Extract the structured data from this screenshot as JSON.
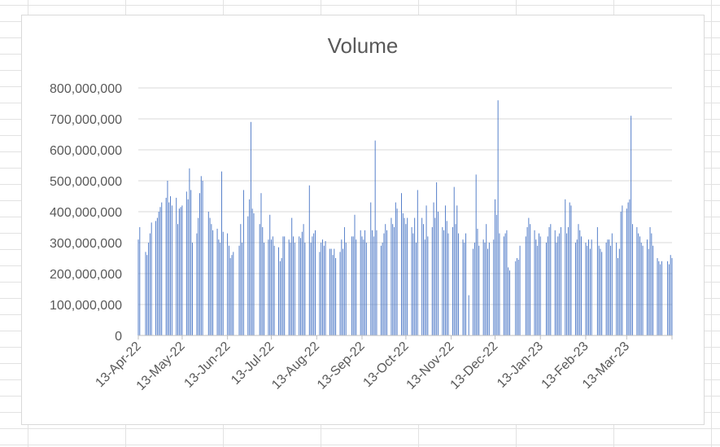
{
  "chart_data": {
    "type": "bar",
    "title": "Volume",
    "xlabel": "",
    "ylabel": "",
    "ylim": [
      0,
      800000000
    ],
    "y_ticks": [
      0,
      100000000,
      200000000,
      300000000,
      400000000,
      500000000,
      600000000,
      700000000,
      800000000
    ],
    "y_tick_labels": [
      "0",
      "100,000,000",
      "200,000,000",
      "300,000,000",
      "400,000,000",
      "500,000,000",
      "600,000,000",
      "700,000,000",
      "800,000,000"
    ],
    "x_range": [
      "2022-04-13",
      "2023-04-13"
    ],
    "x_ticks": [
      "2022-04-13",
      "2022-05-13",
      "2022-06-13",
      "2022-07-13",
      "2022-08-13",
      "2022-09-13",
      "2022-10-13",
      "2022-11-13",
      "2022-12-13",
      "2023-01-13",
      "2023-02-13",
      "2023-03-13"
    ],
    "x_tick_labels": [
      "13-Apr-22",
      "13-May-22",
      "13-Jun-22",
      "13-Jul-22",
      "13-Aug-22",
      "13-Sep-22",
      "13-Oct-22",
      "13-Nov-22",
      "13-Dec-22",
      "13-Jan-23",
      "13-Feb-23",
      "13-Mar-23"
    ],
    "grid": "horizontal",
    "legend": "none",
    "bar_color": "#4472c4",
    "series": [
      {
        "values": [
          [
            "2022-04-13",
            310000000
          ],
          [
            "2022-04-14",
            350000000
          ],
          [
            "2022-04-18",
            270000000
          ],
          [
            "2022-04-19",
            260000000
          ],
          [
            "2022-04-20",
            300000000
          ],
          [
            "2022-04-21",
            330000000
          ],
          [
            "2022-04-22",
            365000000
          ],
          [
            "2022-04-25",
            370000000
          ],
          [
            "2022-04-26",
            380000000
          ],
          [
            "2022-04-27",
            400000000
          ],
          [
            "2022-04-28",
            415000000
          ],
          [
            "2022-04-29",
            430000000
          ],
          [
            "2022-05-02",
            445000000
          ],
          [
            "2022-05-03",
            500000000
          ],
          [
            "2022-05-04",
            430000000
          ],
          [
            "2022-05-05",
            450000000
          ],
          [
            "2022-05-06",
            420000000
          ],
          [
            "2022-05-09",
            445000000
          ],
          [
            "2022-05-10",
            360000000
          ],
          [
            "2022-05-11",
            410000000
          ],
          [
            "2022-05-12",
            415000000
          ],
          [
            "2022-05-13",
            420000000
          ],
          [
            "2022-05-16",
            465000000
          ],
          [
            "2022-05-17",
            440000000
          ],
          [
            "2022-05-18",
            540000000
          ],
          [
            "2022-05-19",
            470000000
          ],
          [
            "2022-05-20",
            300000000
          ],
          [
            "2022-05-23",
            330000000
          ],
          [
            "2022-05-24",
            380000000
          ],
          [
            "2022-05-25",
            460000000
          ],
          [
            "2022-05-26",
            515000000
          ],
          [
            "2022-05-27",
            500000000
          ],
          [
            "2022-05-31",
            400000000
          ],
          [
            "2022-06-01",
            380000000
          ],
          [
            "2022-06-02",
            360000000
          ],
          [
            "2022-06-03",
            340000000
          ],
          [
            "2022-06-06",
            345000000
          ],
          [
            "2022-06-07",
            310000000
          ],
          [
            "2022-06-08",
            300000000
          ],
          [
            "2022-06-09",
            530000000
          ],
          [
            "2022-06-10",
            335000000
          ],
          [
            "2022-06-13",
            330000000
          ],
          [
            "2022-06-14",
            290000000
          ],
          [
            "2022-06-15",
            250000000
          ],
          [
            "2022-06-16",
            260000000
          ],
          [
            "2022-06-17",
            270000000
          ],
          [
            "2022-06-21",
            290000000
          ],
          [
            "2022-06-22",
            360000000
          ],
          [
            "2022-06-23",
            300000000
          ],
          [
            "2022-06-24",
            470000000
          ],
          [
            "2022-06-27",
            385000000
          ],
          [
            "2022-06-28",
            440000000
          ],
          [
            "2022-06-29",
            690000000
          ],
          [
            "2022-06-30",
            410000000
          ],
          [
            "2022-07-01",
            395000000
          ],
          [
            "2022-07-05",
            360000000
          ],
          [
            "2022-07-06",
            460000000
          ],
          [
            "2022-07-07",
            350000000
          ],
          [
            "2022-07-08",
            300000000
          ],
          [
            "2022-07-11",
            310000000
          ],
          [
            "2022-07-12",
            390000000
          ],
          [
            "2022-07-13",
            310000000
          ],
          [
            "2022-07-14",
            320000000
          ],
          [
            "2022-07-15",
            290000000
          ],
          [
            "2022-07-18",
            285000000
          ],
          [
            "2022-07-19",
            240000000
          ],
          [
            "2022-07-20",
            250000000
          ],
          [
            "2022-07-21",
            320000000
          ],
          [
            "2022-07-22",
            320000000
          ],
          [
            "2022-07-25",
            310000000
          ],
          [
            "2022-07-26",
            300000000
          ],
          [
            "2022-07-27",
            380000000
          ],
          [
            "2022-07-28",
            320000000
          ],
          [
            "2022-07-29",
            300000000
          ],
          [
            "2022-08-01",
            320000000
          ],
          [
            "2022-08-02",
            315000000
          ],
          [
            "2022-08-03",
            335000000
          ],
          [
            "2022-08-04",
            360000000
          ],
          [
            "2022-08-05",
            300000000
          ],
          [
            "2022-08-08",
            485000000
          ],
          [
            "2022-08-09",
            300000000
          ],
          [
            "2022-08-10",
            320000000
          ],
          [
            "2022-08-11",
            330000000
          ],
          [
            "2022-08-12",
            340000000
          ],
          [
            "2022-08-15",
            270000000
          ],
          [
            "2022-08-16",
            300000000
          ],
          [
            "2022-08-17",
            310000000
          ],
          [
            "2022-08-18",
            290000000
          ],
          [
            "2022-08-19",
            305000000
          ],
          [
            "2022-08-22",
            280000000
          ],
          [
            "2022-08-23",
            280000000
          ],
          [
            "2022-08-24",
            260000000
          ],
          [
            "2022-08-25",
            280000000
          ],
          [
            "2022-08-26",
            250000000
          ],
          [
            "2022-08-29",
            270000000
          ],
          [
            "2022-08-30",
            310000000
          ],
          [
            "2022-08-31",
            280000000
          ],
          [
            "2022-09-01",
            350000000
          ],
          [
            "2022-09-02",
            300000000
          ],
          [
            "2022-09-06",
            320000000
          ],
          [
            "2022-09-07",
            320000000
          ],
          [
            "2022-09-08",
            390000000
          ],
          [
            "2022-09-09",
            310000000
          ],
          [
            "2022-09-12",
            340000000
          ],
          [
            "2022-09-13",
            320000000
          ],
          [
            "2022-09-14",
            310000000
          ],
          [
            "2022-09-15",
            340000000
          ],
          [
            "2022-09-16",
            300000000
          ],
          [
            "2022-09-19",
            430000000
          ],
          [
            "2022-09-20",
            340000000
          ],
          [
            "2022-09-21",
            320000000
          ],
          [
            "2022-09-22",
            630000000
          ],
          [
            "2022-09-23",
            340000000
          ],
          [
            "2022-09-26",
            290000000
          ],
          [
            "2022-09-27",
            300000000
          ],
          [
            "2022-09-28",
            330000000
          ],
          [
            "2022-09-29",
            360000000
          ],
          [
            "2022-09-30",
            340000000
          ],
          [
            "2022-10-03",
            380000000
          ],
          [
            "2022-10-04",
            360000000
          ],
          [
            "2022-10-05",
            350000000
          ],
          [
            "2022-10-06",
            430000000
          ],
          [
            "2022-10-07",
            410000000
          ],
          [
            "2022-10-10",
            460000000
          ],
          [
            "2022-10-11",
            395000000
          ],
          [
            "2022-10-12",
            380000000
          ],
          [
            "2022-10-13",
            360000000
          ],
          [
            "2022-10-14",
            380000000
          ],
          [
            "2022-10-17",
            350000000
          ],
          [
            "2022-10-18",
            330000000
          ],
          [
            "2022-10-19",
            380000000
          ],
          [
            "2022-10-20",
            300000000
          ],
          [
            "2022-10-21",
            470000000
          ],
          [
            "2022-10-24",
            380000000
          ],
          [
            "2022-10-25",
            360000000
          ],
          [
            "2022-10-26",
            310000000
          ],
          [
            "2022-10-27",
            420000000
          ],
          [
            "2022-10-28",
            320000000
          ],
          [
            "2022-10-31",
            350000000
          ],
          [
            "2022-11-01",
            430000000
          ],
          [
            "2022-11-02",
            380000000
          ],
          [
            "2022-11-03",
            495000000
          ],
          [
            "2022-11-04",
            400000000
          ],
          [
            "2022-11-07",
            350000000
          ],
          [
            "2022-11-08",
            340000000
          ],
          [
            "2022-11-09",
            420000000
          ],
          [
            "2022-11-10",
            370000000
          ],
          [
            "2022-11-11",
            330000000
          ],
          [
            "2022-11-14",
            350000000
          ],
          [
            "2022-11-15",
            480000000
          ],
          [
            "2022-11-16",
            360000000
          ],
          [
            "2022-11-17",
            420000000
          ],
          [
            "2022-11-18",
            330000000
          ],
          [
            "2022-11-21",
            310000000
          ],
          [
            "2022-11-22",
            300000000
          ],
          [
            "2022-11-23",
            330000000
          ],
          [
            "2022-11-25",
            130000000
          ],
          [
            "2022-11-28",
            280000000
          ],
          [
            "2022-11-29",
            300000000
          ],
          [
            "2022-11-30",
            520000000
          ],
          [
            "2022-12-01",
            345000000
          ],
          [
            "2022-12-02",
            290000000
          ],
          [
            "2022-12-05",
            310000000
          ],
          [
            "2022-12-06",
            300000000
          ],
          [
            "2022-12-07",
            360000000
          ],
          [
            "2022-12-08",
            280000000
          ],
          [
            "2022-12-09",
            300000000
          ],
          [
            "2022-12-12",
            310000000
          ],
          [
            "2022-12-13",
            440000000
          ],
          [
            "2022-12-14",
            390000000
          ],
          [
            "2022-12-15",
            760000000
          ],
          [
            "2022-12-16",
            330000000
          ],
          [
            "2022-12-19",
            320000000
          ],
          [
            "2022-12-20",
            330000000
          ],
          [
            "2022-12-21",
            340000000
          ],
          [
            "2022-12-22",
            220000000
          ],
          [
            "2022-12-23",
            210000000
          ],
          [
            "2022-12-27",
            240000000
          ],
          [
            "2022-12-28",
            250000000
          ],
          [
            "2022-12-29",
            245000000
          ],
          [
            "2022-12-30",
            290000000
          ],
          [
            "2023-01-03",
            320000000
          ],
          [
            "2023-01-04",
            350000000
          ],
          [
            "2023-01-05",
            380000000
          ],
          [
            "2023-01-06",
            360000000
          ],
          [
            "2023-01-09",
            340000000
          ],
          [
            "2023-01-10",
            310000000
          ],
          [
            "2023-01-11",
            290000000
          ],
          [
            "2023-01-12",
            330000000
          ],
          [
            "2023-01-13",
            320000000
          ],
          [
            "2023-01-17",
            300000000
          ],
          [
            "2023-01-18",
            320000000
          ],
          [
            "2023-01-19",
            350000000
          ],
          [
            "2023-01-20",
            360000000
          ],
          [
            "2023-01-23",
            340000000
          ],
          [
            "2023-01-24",
            300000000
          ],
          [
            "2023-01-25",
            320000000
          ],
          [
            "2023-01-26",
            330000000
          ],
          [
            "2023-01-27",
            350000000
          ],
          [
            "2023-01-30",
            440000000
          ],
          [
            "2023-01-31",
            330000000
          ],
          [
            "2023-02-01",
            350000000
          ],
          [
            "2023-02-02",
            430000000
          ],
          [
            "2023-02-03",
            420000000
          ],
          [
            "2023-02-06",
            300000000
          ],
          [
            "2023-02-07",
            310000000
          ],
          [
            "2023-02-08",
            360000000
          ],
          [
            "2023-02-09",
            340000000
          ],
          [
            "2023-02-10",
            320000000
          ],
          [
            "2023-02-13",
            300000000
          ],
          [
            "2023-02-14",
            290000000
          ],
          [
            "2023-02-15",
            310000000
          ],
          [
            "2023-02-16",
            280000000
          ],
          [
            "2023-02-17",
            310000000
          ],
          [
            "2023-02-21",
            350000000
          ],
          [
            "2023-02-22",
            290000000
          ],
          [
            "2023-02-23",
            280000000
          ],
          [
            "2023-02-24",
            270000000
          ],
          [
            "2023-02-27",
            300000000
          ],
          [
            "2023-02-28",
            310000000
          ],
          [
            "2023-03-01",
            310000000
          ],
          [
            "2023-03-02",
            290000000
          ],
          [
            "2023-03-03",
            330000000
          ],
          [
            "2023-03-06",
            300000000
          ],
          [
            "2023-03-07",
            250000000
          ],
          [
            "2023-03-08",
            280000000
          ],
          [
            "2023-03-09",
            400000000
          ],
          [
            "2023-03-10",
            420000000
          ],
          [
            "2023-03-13",
            410000000
          ],
          [
            "2023-03-14",
            430000000
          ],
          [
            "2023-03-15",
            440000000
          ],
          [
            "2023-03-16",
            710000000
          ],
          [
            "2023-03-17",
            360000000
          ],
          [
            "2023-03-20",
            350000000
          ],
          [
            "2023-03-21",
            330000000
          ],
          [
            "2023-03-22",
            320000000
          ],
          [
            "2023-03-23",
            300000000
          ],
          [
            "2023-03-24",
            290000000
          ],
          [
            "2023-03-27",
            310000000
          ],
          [
            "2023-03-28",
            280000000
          ],
          [
            "2023-03-29",
            350000000
          ],
          [
            "2023-03-30",
            330000000
          ],
          [
            "2023-03-31",
            290000000
          ],
          [
            "2023-04-03",
            250000000
          ],
          [
            "2023-04-04",
            240000000
          ],
          [
            "2023-04-05",
            230000000
          ],
          [
            "2023-04-06",
            240000000
          ],
          [
            "2023-04-10",
            240000000
          ],
          [
            "2023-04-11",
            230000000
          ],
          [
            "2023-04-12",
            260000000
          ],
          [
            "2023-04-13",
            250000000
          ]
        ]
      }
    ]
  }
}
